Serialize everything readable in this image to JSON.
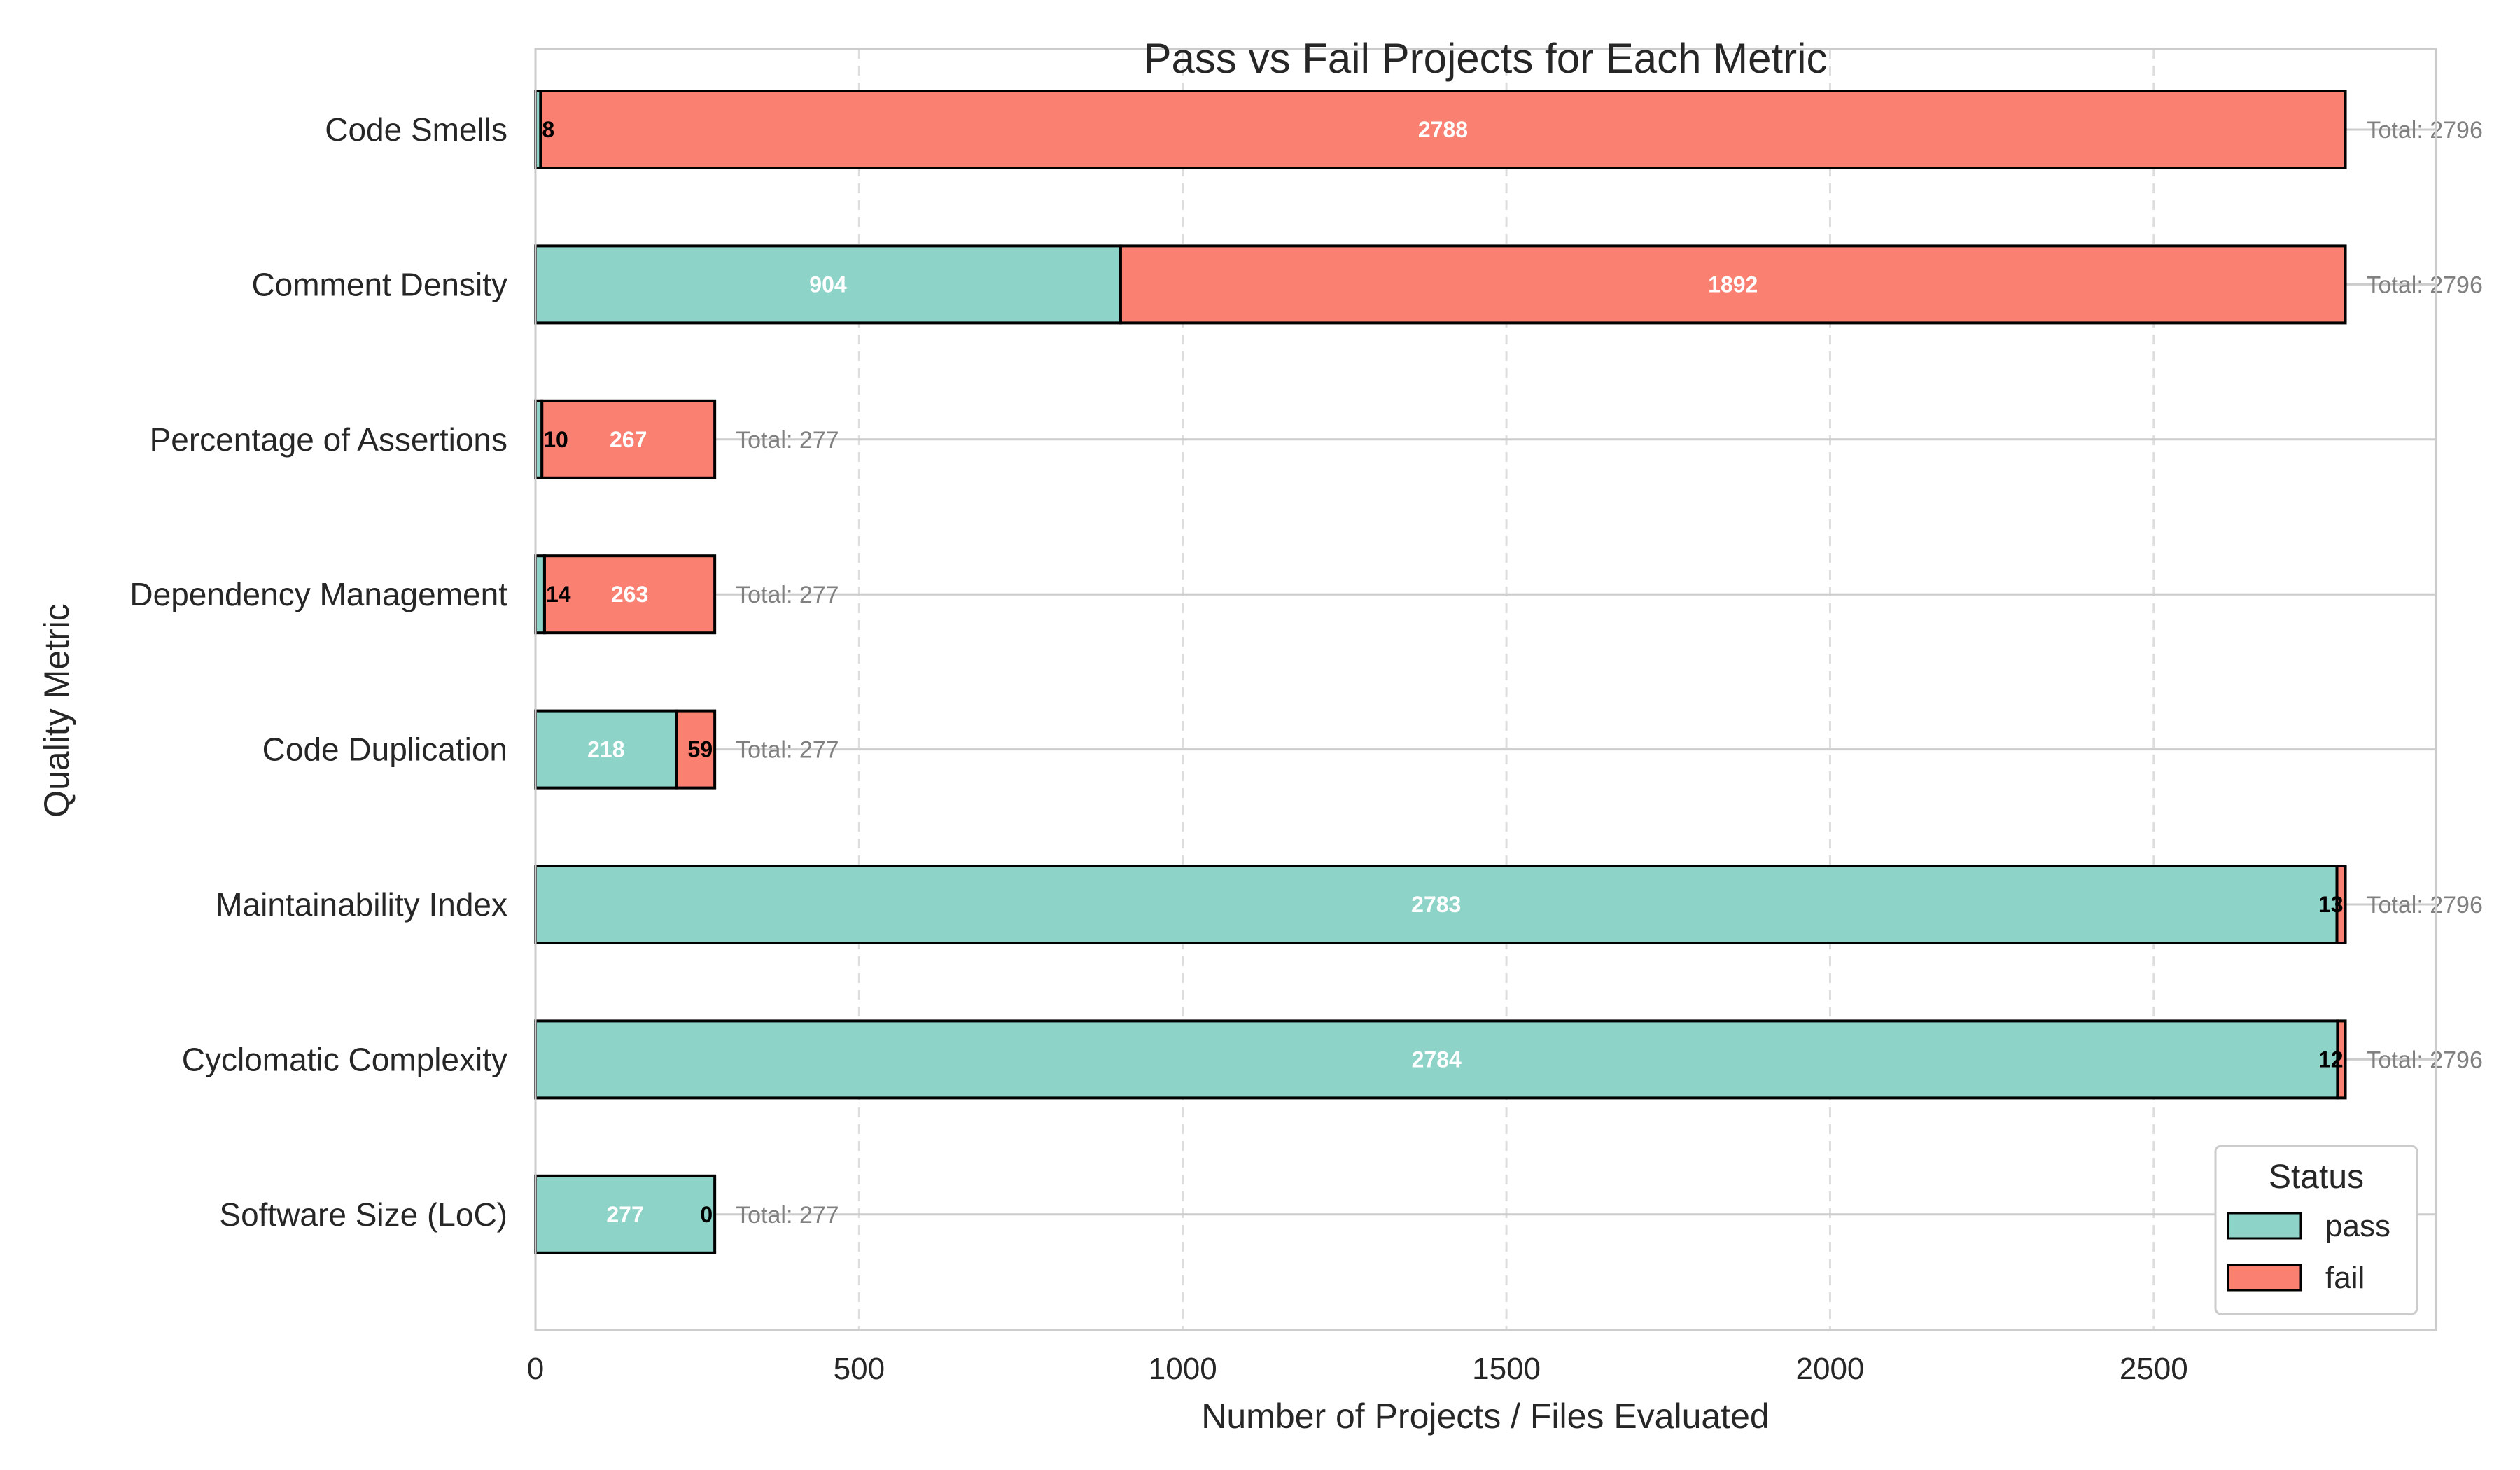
{
  "chart_data": {
    "type": "bar",
    "orientation": "horizontal",
    "stacked": true,
    "title": "Pass vs Fail Projects for Each Metric",
    "xlabel": "Number of Projects / Files Evaluated",
    "ylabel": "Quality Metric",
    "xlim": [
      0,
      2936
    ],
    "xticks": [
      0,
      500,
      1000,
      1500,
      2000,
      2500
    ],
    "grid": true,
    "legend": {
      "title": "Status",
      "placement": "bottom-right"
    },
    "categories": [
      "Code Smells",
      "Comment Density",
      "Percentage of Assertions",
      "Dependency Management",
      "Code Duplication",
      "Maintainability Index",
      "Cyclomatic Complexity",
      "Software Size (LoC)"
    ],
    "series": [
      {
        "name": "pass",
        "color": "#8dd3c7",
        "values": [
          8,
          904,
          10,
          14,
          218,
          2783,
          2784,
          277
        ]
      },
      {
        "name": "fail",
        "color": "#fa8072",
        "values": [
          2788,
          1892,
          267,
          263,
          59,
          13,
          12,
          0
        ]
      }
    ],
    "totals": [
      2796,
      2796,
      277,
      277,
      277,
      2796,
      2796,
      277
    ],
    "total_prefix": "Total: "
  }
}
